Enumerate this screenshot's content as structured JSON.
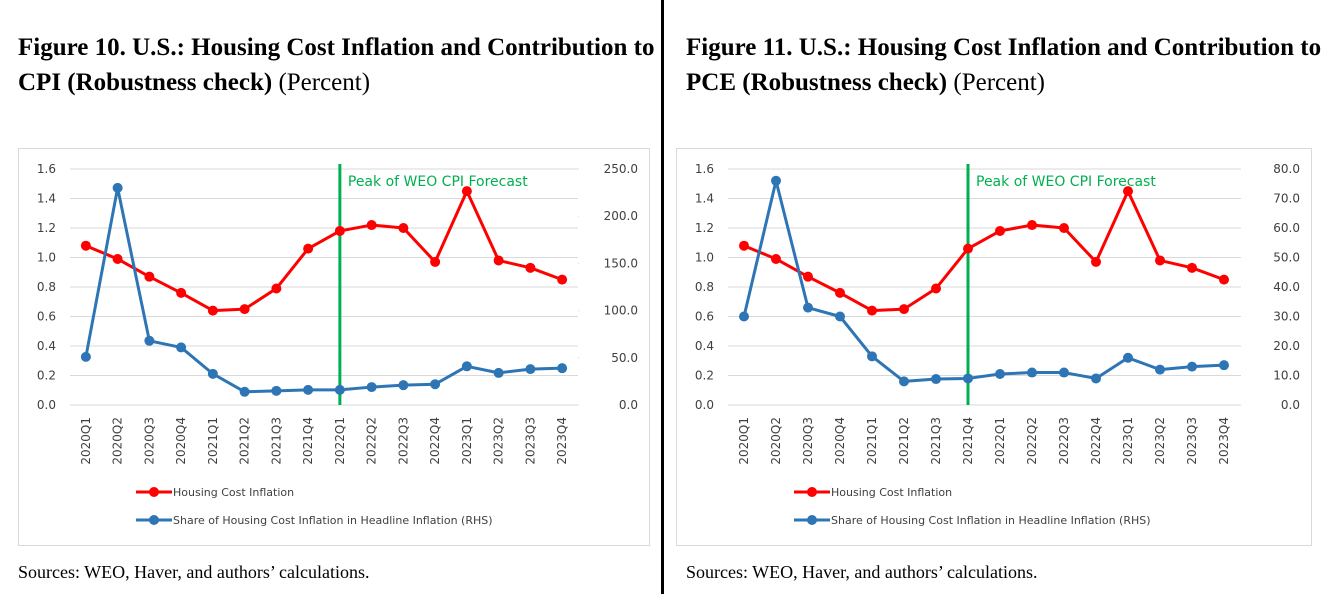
{
  "chart_data": [
    {
      "type": "line",
      "title": "Figure 10. U.S.: Housing Cost Inflation and Contribution to CPI (Robustness check)",
      "subtitle": "(Percent)",
      "source": "Sources: WEO, Haver, and authors’ calculations.",
      "categories": [
        "2020Q1",
        "2020Q2",
        "2020Q3",
        "2020Q4",
        "2021Q1",
        "2021Q2",
        "2021Q3",
        "2021Q4",
        "2022Q1",
        "2022Q2",
        "2022Q3",
        "2022Q4",
        "2023Q1",
        "2023Q2",
        "2023Q3",
        "2023Q4"
      ],
      "series": [
        {
          "name": "Housing Cost Inflation",
          "color": "#ff0000",
          "axis": "y",
          "values": [
            1.08,
            0.99,
            0.87,
            0.76,
            0.64,
            0.65,
            0.79,
            1.06,
            1.18,
            1.22,
            1.2,
            0.97,
            1.45,
            0.98,
            0.93,
            0.85
          ]
        },
        {
          "name": "Share of Housing Cost Inflation in Headline Inflation (RHS)",
          "color": "#2e75b6",
          "axis": "y2",
          "values": [
            51,
            230,
            68,
            61,
            33,
            14,
            15,
            16,
            16,
            19,
            21,
            22,
            41,
            34,
            38,
            39
          ]
        }
      ],
      "ylim": [
        0,
        1.6
      ],
      "yticks": [
        {
          "value": 0,
          "label": "0.0"
        },
        0.2,
        0.4,
        0.6,
        0.8,
        {
          "value": 1,
          "label": "1.0"
        },
        1.2,
        1.4,
        1.6
      ],
      "y2lim": [
        0,
        250
      ],
      "y2ticks": [
        {
          "value": 0,
          "label": "0.0"
        },
        {
          "value": 50,
          "label": "50.0"
        },
        {
          "value": 100,
          "label": "100.0"
        },
        {
          "value": 150,
          "label": "150.0"
        },
        {
          "value": 200,
          "label": "200.0"
        },
        {
          "value": 250,
          "label": "250.0"
        }
      ],
      "vline": {
        "x": "2022Q1",
        "label": "Peak of WEO CPI Forecast",
        "color": "#00b050"
      }
    },
    {
      "type": "line",
      "title": "Figure 11. U.S.: Housing Cost Inflation and Contribution to PCE (Robustness check)",
      "subtitle": "(Percent)",
      "source": "Sources: WEO, Haver, and authors’ calculations.",
      "categories": [
        "2020Q1",
        "2020Q2",
        "2020Q3",
        "2020Q4",
        "2021Q1",
        "2021Q2",
        "2021Q3",
        "2021Q4",
        "2022Q1",
        "2022Q2",
        "2022Q3",
        "2022Q4",
        "2023Q1",
        "2023Q2",
        "2023Q3",
        "2023Q4"
      ],
      "series": [
        {
          "name": "Housing Cost Inflation",
          "color": "#ff0000",
          "axis": "y",
          "values": [
            1.08,
            0.99,
            0.87,
            0.76,
            0.64,
            0.65,
            0.79,
            1.06,
            1.18,
            1.22,
            1.2,
            0.97,
            1.45,
            0.98,
            0.93,
            0.85
          ]
        },
        {
          "name": "Share of Housing Cost Inflation in Headline Inflation (RHS)",
          "color": "#2e75b6",
          "axis": "y2",
          "values": [
            30,
            76,
            33,
            30,
            16.5,
            8,
            8.8,
            9,
            10.5,
            11,
            11,
            9,
            16,
            12,
            13,
            13.5
          ]
        }
      ],
      "ylim": [
        0,
        1.6
      ],
      "yticks": [
        {
          "value": 0,
          "label": "0.0"
        },
        0.2,
        0.4,
        0.6,
        0.8,
        {
          "value": 1,
          "label": "1.0"
        },
        1.2,
        1.4,
        1.6
      ],
      "y2lim": [
        0,
        80
      ],
      "y2ticks": [
        {
          "value": 0,
          "label": "0.0"
        },
        {
          "value": 10,
          "label": "10.0"
        },
        {
          "value": 20,
          "label": "20.0"
        },
        {
          "value": 30,
          "label": "30.0"
        },
        {
          "value": 40,
          "label": "40.0"
        },
        {
          "value": 50,
          "label": "50.0"
        },
        {
          "value": 60,
          "label": "60.0"
        },
        {
          "value": 70,
          "label": "70.0"
        },
        {
          "value": 80,
          "label": "80.0"
        }
      ],
      "vline": {
        "x": "2021Q4",
        "label": "Peak of WEO CPI Forecast",
        "color": "#00b050"
      }
    }
  ]
}
